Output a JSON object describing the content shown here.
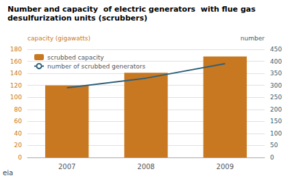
{
  "chart_data": {
    "type": "bar",
    "title": "Number and capacity  of electric generators  with flue gas",
    "subtitle": "desulfurization units (scrubbers)",
    "ylabel": "capacity (gigawatts)",
    "y2label": "number",
    "categories": [
      "2007",
      "2008",
      "2009"
    ],
    "series": [
      {
        "name": "scrubbed capacity",
        "type": "bar",
        "color": "#C87820",
        "values": [
          120,
          141,
          168
        ]
      },
      {
        "name": "number of scrubbed generators",
        "type": "line",
        "axis": "y2",
        "color": "#2E5F7A",
        "values": [
          290,
          330,
          390
        ]
      }
    ],
    "ylim": [
      0,
      180
    ],
    "yticks": [
      0,
      20,
      40,
      60,
      80,
      100,
      120,
      140,
      160,
      180
    ],
    "y2lim": [
      0,
      450
    ],
    "y2ticks": [
      0,
      50,
      100,
      150,
      200,
      250,
      300,
      350,
      400,
      450
    ],
    "grid": true,
    "legend": "upper left",
    "annotations": [
      "eia"
    ]
  }
}
